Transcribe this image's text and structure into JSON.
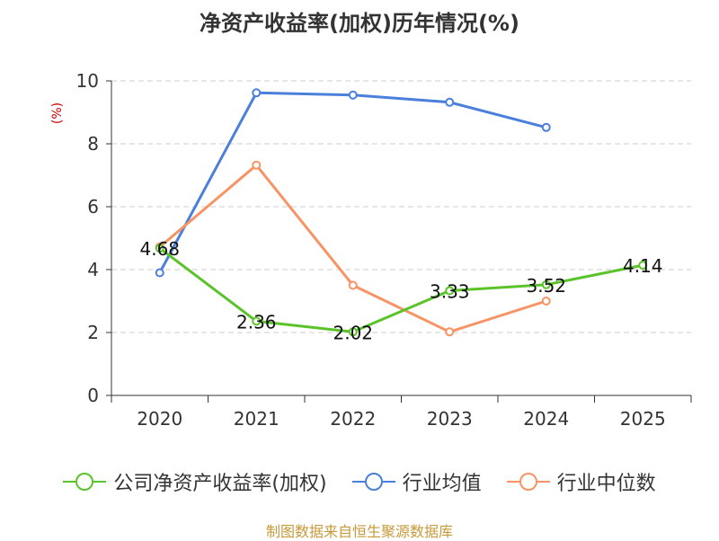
{
  "source": "制图数据来自恒生聚源数据库",
  "colors": {
    "company": "#5bc32a",
    "industry_avg": "#4a7fdb",
    "industry_median": "#f79465",
    "grid": "#cccccc",
    "axis": "#333333",
    "unit": "#cc0000",
    "source": "#c69a3a"
  },
  "chart_data": {
    "type": "line",
    "title": "净资产收益率(加权)历年情况(%)",
    "ylabel": "(%)",
    "xlabel": "",
    "categories": [
      "2020",
      "2021",
      "2022",
      "2023",
      "2024",
      "2025"
    ],
    "ylim": [
      0,
      10
    ],
    "yticks": [
      0,
      2,
      4,
      6,
      8,
      10
    ],
    "grid": true,
    "legend_position": "bottom",
    "series": [
      {
        "name": "公司净资产收益率(加权)",
        "key": "company",
        "values": [
          4.68,
          2.36,
          2.02,
          3.33,
          3.52,
          4.14
        ],
        "labels": [
          "4.68",
          "2.36",
          "2.02",
          "3.33",
          "3.52",
          "4.14"
        ]
      },
      {
        "name": "行业均值",
        "key": "industry_avg",
        "values": [
          3.9,
          9.62,
          9.55,
          9.32,
          8.52,
          null
        ]
      },
      {
        "name": "行业中位数",
        "key": "industry_median",
        "values": [
          4.72,
          7.32,
          3.5,
          2.02,
          3.0,
          null
        ]
      }
    ]
  }
}
